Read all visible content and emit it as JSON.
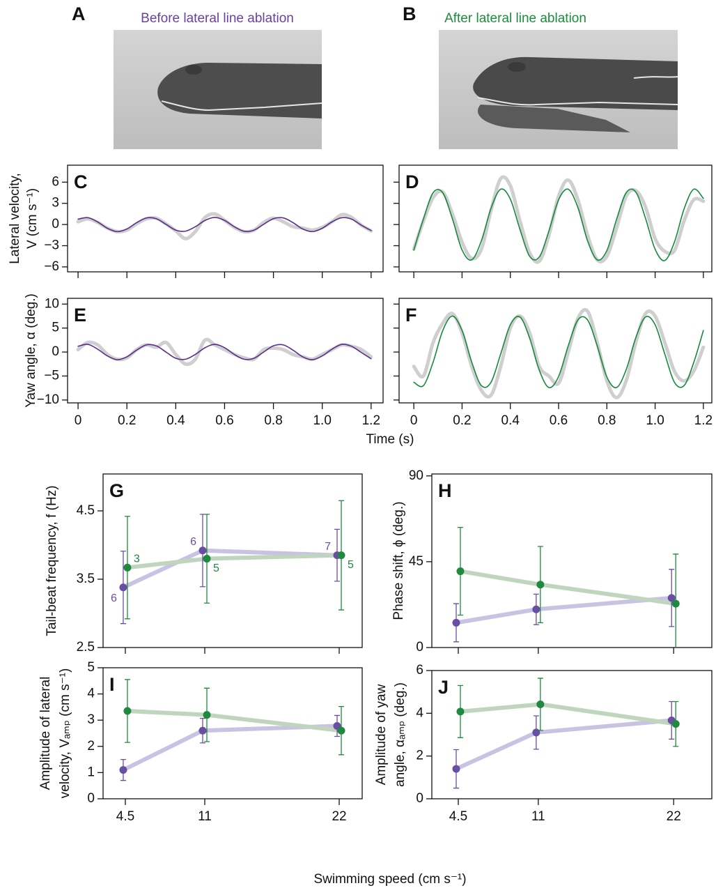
{
  "figure": {
    "photos": [
      {
        "label": "A",
        "title": "Before lateral line ablation"
      },
      {
        "label": "B",
        "title": "After lateral line ablation"
      }
    ],
    "time_xlabel": "Time (s)",
    "speed_xlabel": "Swimming speed (cm s⁻¹)"
  },
  "chart_data": [
    {
      "type": "line",
      "label": "C",
      "ylabel": [
        "Lateral velocity,",
        "V (cm s⁻¹)"
      ],
      "x": [
        0,
        0.04,
        0.08,
        0.12,
        0.16,
        0.2,
        0.24,
        0.28,
        0.32,
        0.36,
        0.4,
        0.44,
        0.48,
        0.52,
        0.56,
        0.6,
        0.64,
        0.68,
        0.72,
        0.76,
        0.8,
        0.84,
        0.88,
        0.92,
        0.96,
        1,
        1.04,
        1.08,
        1.12,
        1.16,
        1.2
      ],
      "series": [
        {
          "color": "#cfcfcf",
          "values": [
            0.4,
            0.8,
            0.3,
            -0.5,
            -1.0,
            -0.8,
            0.1,
            0.8,
            0.9,
            0.1,
            -0.9,
            -2.0,
            -1.0,
            1.0,
            1.5,
            0.6,
            -0.4,
            -1.0,
            -0.8,
            0.3,
            0.9,
            0.4,
            -0.3,
            -0.5,
            -0.8,
            -0.4,
            0.4,
            1.4,
            1.0,
            -0.1,
            -0.9
          ]
        },
        {
          "color": "#5a2d8c",
          "values": [
            0.76,
            0.97,
            0.37,
            -0.53,
            -1.0,
            -0.63,
            0.26,
            0.93,
            0.83,
            0.03,
            -0.79,
            -0.94,
            -0.32,
            0.58,
            1.0,
            0.58,
            -0.32,
            -0.96,
            -0.8,
            0.03,
            0.83,
            0.94,
            0.27,
            -0.63,
            -1.0,
            -0.53,
            0.38,
            0.97,
            0.76,
            -0.09,
            -0.86
          ]
        }
      ],
      "xlim": [
        -0.043,
        1.249
      ],
      "ylim": [
        -6.7,
        8.4
      ],
      "xticks": [
        0,
        0.2,
        0.4,
        0.6,
        0.8,
        {
          "value": 1,
          "label": "1.0"
        },
        1.2
      ],
      "yticks": [
        {
          "value": -6,
          "label": "−6"
        },
        {
          "value": -3,
          "label": "−3"
        },
        0,
        3,
        6
      ],
      "xtick_labels": false
    },
    {
      "type": "line",
      "label": "D",
      "x": [
        0,
        0.04,
        0.08,
        0.12,
        0.16,
        0.2,
        0.24,
        0.28,
        0.32,
        0.36,
        0.4,
        0.44,
        0.48,
        0.52,
        0.56,
        0.6,
        0.64,
        0.68,
        0.72,
        0.76,
        0.8,
        0.84,
        0.88,
        0.92,
        0.96,
        1,
        1.04,
        1.08,
        1.12,
        1.16,
        1.2
      ],
      "series": [
        {
          "color": "#cfcfcf",
          "values": [
            -3.5,
            0.5,
            3.8,
            4.6,
            1.5,
            -2.5,
            -4.8,
            -3.5,
            2.0,
            6.5,
            5.5,
            0.5,
            -4.0,
            -5.2,
            -1.5,
            4.0,
            6.3,
            3.5,
            -1.5,
            -5.0,
            -4.5,
            -0.5,
            4.0,
            4.8,
            2.5,
            -2.0,
            -3.8,
            -3.7,
            0.5,
            3.5,
            3.3
          ]
        },
        {
          "color": "#148a3c",
          "values": [
            -3.6,
            0.8,
            4.5,
            4.5,
            0.8,
            -3.6,
            -5.0,
            -2.3,
            2.3,
            5.0,
            3.6,
            -0.7,
            -4.5,
            -4.6,
            -0.9,
            3.5,
            5.0,
            2.4,
            -2.3,
            -5.0,
            -3.7,
            0.7,
            4.5,
            4.6,
            0.9,
            -3.5,
            -5.1,
            -2.5,
            2.2,
            5.0,
            3.7
          ]
        }
      ],
      "xlim": [
        -0.061,
        1.235
      ],
      "ylim": [
        -6.7,
        8.4
      ],
      "xticks": [
        0,
        0.2,
        0.4,
        0.6,
        0.8,
        1,
        1.2
      ],
      "yticks": [
        -6,
        -3,
        0,
        3,
        6
      ],
      "xtick_labels": false,
      "ytick_labels": false
    },
    {
      "type": "line",
      "label": "E",
      "ylabel": "Yaw angle, α (deg.)",
      "x": [
        0,
        0.04,
        0.08,
        0.12,
        0.16,
        0.2,
        0.24,
        0.28,
        0.32,
        0.36,
        0.4,
        0.44,
        0.48,
        0.52,
        0.56,
        0.6,
        0.64,
        0.68,
        0.72,
        0.76,
        0.8,
        0.84,
        0.88,
        0.92,
        0.96,
        1,
        1.04,
        1.08,
        1.12,
        1.16,
        1.2
      ],
      "series": [
        {
          "color": "#cfcfcf",
          "values": [
            0.5,
            2.0,
            1.5,
            -0.5,
            -1.5,
            -1.2,
            0.5,
            1.5,
            1.0,
            2.0,
            -0.5,
            -2.5,
            -1.5,
            2.5,
            1.5,
            0.5,
            -0.5,
            -1.2,
            -1.5,
            0.5,
            0.8,
            0.5,
            -0.5,
            -1.0,
            -1.5,
            -0.5,
            0.5,
            1.5,
            1.2,
            0.5,
            -1.0
          ]
        },
        {
          "color": "#5a2d8c",
          "values": [
            1.2,
            1.6,
            0.6,
            -0.8,
            -1.6,
            -1.0,
            0.4,
            1.5,
            1.3,
            0.0,
            -1.3,
            -1.5,
            -0.5,
            0.9,
            1.6,
            0.9,
            -0.5,
            -1.5,
            -1.3,
            0.0,
            1.3,
            1.5,
            0.4,
            -1.0,
            -1.6,
            -0.8,
            0.6,
            1.6,
            1.2,
            -0.1,
            -1.4
          ]
        }
      ],
      "xlim": [
        -0.043,
        1.249
      ],
      "ylim": [
        -10.6,
        11.2
      ],
      "xticks": [
        0,
        0.2,
        0.4,
        0.6,
        0.8,
        {
          "value": 1,
          "label": "1.0"
        },
        1.2
      ],
      "yticks": [
        {
          "value": -10,
          "label": "−10"
        },
        {
          "value": -5,
          "label": "−5"
        },
        0,
        5,
        10
      ]
    },
    {
      "type": "line",
      "label": "F",
      "x": [
        0,
        0.04,
        0.08,
        0.12,
        0.16,
        0.2,
        0.24,
        0.28,
        0.32,
        0.36,
        0.4,
        0.44,
        0.48,
        0.52,
        0.56,
        0.6,
        0.64,
        0.68,
        0.72,
        0.76,
        0.8,
        0.84,
        0.88,
        0.92,
        0.96,
        1,
        1.04,
        1.08,
        1.12,
        1.16,
        1.2
      ],
      "series": [
        {
          "color": "#cfcfcf",
          "values": [
            -3,
            -5,
            2,
            6,
            8,
            4,
            -3,
            -8,
            -9,
            -3,
            5,
            7.5,
            4,
            -3,
            -5,
            -6.5,
            0,
            7,
            8.5,
            2,
            -6,
            -9.5,
            -6,
            2,
            8,
            7.5,
            2,
            -4,
            -6,
            -4,
            1
          ]
        },
        {
          "color": "#148a3c",
          "values": [
            -6.3,
            -7.0,
            -2.1,
            4.5,
            7.5,
            4.5,
            -2.1,
            -7.0,
            -6.3,
            -0.4,
            5.7,
            7.3,
            2.9,
            -3.8,
            -7.4,
            -5.1,
            1.3,
            6.7,
            6.7,
            1.3,
            -5.2,
            -7.4,
            -3.7,
            3.0,
            7.3,
            5.7,
            -0.4,
            -6.3,
            -7.0,
            -2.2,
            4.5
          ]
        }
      ],
      "xlim": [
        -0.061,
        1.235
      ],
      "ylim": [
        -10.6,
        11.2
      ],
      "xticks": [
        0,
        0.2,
        0.4,
        0.6,
        0.8,
        {
          "value": 1,
          "label": "1.0"
        },
        1.2
      ],
      "yticks": [
        -10,
        -5,
        0,
        5,
        10
      ],
      "ytick_labels": false
    },
    {
      "type": "errorbar",
      "label": "G",
      "ylabel": "Tail-beat frequency, f (Hz)",
      "x": [
        4.5,
        11,
        22
      ],
      "series": [
        {
          "color": "#6a4ea3",
          "line_color": "#c9c3e3",
          "values": [
            3.38,
            3.92,
            3.85
          ],
          "errors": [
            0.53,
            0.53,
            0.38
          ],
          "n": [
            6,
            6,
            7
          ]
        },
        {
          "color": "#1f8a3f",
          "line_color": "#c0d5bd",
          "values": [
            3.67,
            3.8,
            3.85
          ],
          "errors": [
            0.75,
            0.65,
            0.8
          ],
          "n": [
            3,
            5,
            5
          ]
        }
      ],
      "xlim": [
        2.68,
        23.88
      ],
      "ylim": [
        2.5,
        5.04
      ],
      "xticks": [
        4.5,
        11,
        22
      ],
      "yticks": [
        2.5,
        3.5,
        4.5
      ],
      "xtick_labels": false
    },
    {
      "type": "errorbar",
      "label": "H",
      "ylabel": "Phase shift, ϕ (deg.)",
      "x": [
        4.5,
        11,
        22
      ],
      "series": [
        {
          "color": "#6a4ea3",
          "line_color": "#c9c3e3",
          "values": [
            13,
            20,
            26
          ],
          "errors": [
            10,
            8,
            15
          ]
        },
        {
          "color": "#1f8a3f",
          "line_color": "#c0d5bd",
          "values": [
            40,
            33,
            23
          ],
          "errors": [
            23,
            20,
            26
          ]
        }
      ],
      "xlim": [
        2.35,
        25.1
      ],
      "ylim": [
        0,
        91
      ],
      "xticks": [
        4.5,
        11,
        22
      ],
      "yticks": [
        0,
        45,
        90
      ],
      "xtick_labels": false
    },
    {
      "type": "errorbar",
      "label": "I",
      "ylabel": [
        "Amplitude of lateral",
        "velocity, Vₐₘₚ (cm s⁻¹)"
      ],
      "x": [
        4.5,
        11,
        22
      ],
      "series": [
        {
          "color": "#6a4ea3",
          "line_color": "#c9c3e3",
          "values": [
            1.1,
            2.6,
            2.78
          ],
          "errors": [
            0.4,
            0.47,
            0.4
          ]
        },
        {
          "color": "#1f8a3f",
          "line_color": "#c0d5bd",
          "values": [
            3.35,
            3.2,
            2.6
          ],
          "errors": [
            1.2,
            1.02,
            0.92
          ]
        }
      ],
      "xlim": [
        2.68,
        23.88
      ],
      "ylim": [
        0,
        5
      ],
      "xticks": [
        4.5,
        11,
        22
      ],
      "yticks": [
        0,
        1,
        2,
        3,
        4,
        5
      ]
    },
    {
      "type": "errorbar",
      "label": "J",
      "ylabel": [
        "Amplitude of yaw",
        "angle, αₐₘₚ (deg.)"
      ],
      "x": [
        4.5,
        11,
        22
      ],
      "series": [
        {
          "color": "#6a4ea3",
          "line_color": "#c9c3e3",
          "values": [
            1.4,
            3.1,
            3.67
          ],
          "errors": [
            0.9,
            0.78,
            0.88
          ]
        },
        {
          "color": "#1f8a3f",
          "line_color": "#c0d5bd",
          "values": [
            4.08,
            4.42,
            3.5
          ],
          "errors": [
            1.22,
            1.22,
            1.05
          ]
        }
      ],
      "xlim": [
        2.35,
        25.1
      ],
      "ylim": [
        0,
        6
      ],
      "xticks": [
        4.5,
        11,
        22
      ],
      "yticks": [
        0,
        2,
        4,
        6
      ]
    }
  ]
}
